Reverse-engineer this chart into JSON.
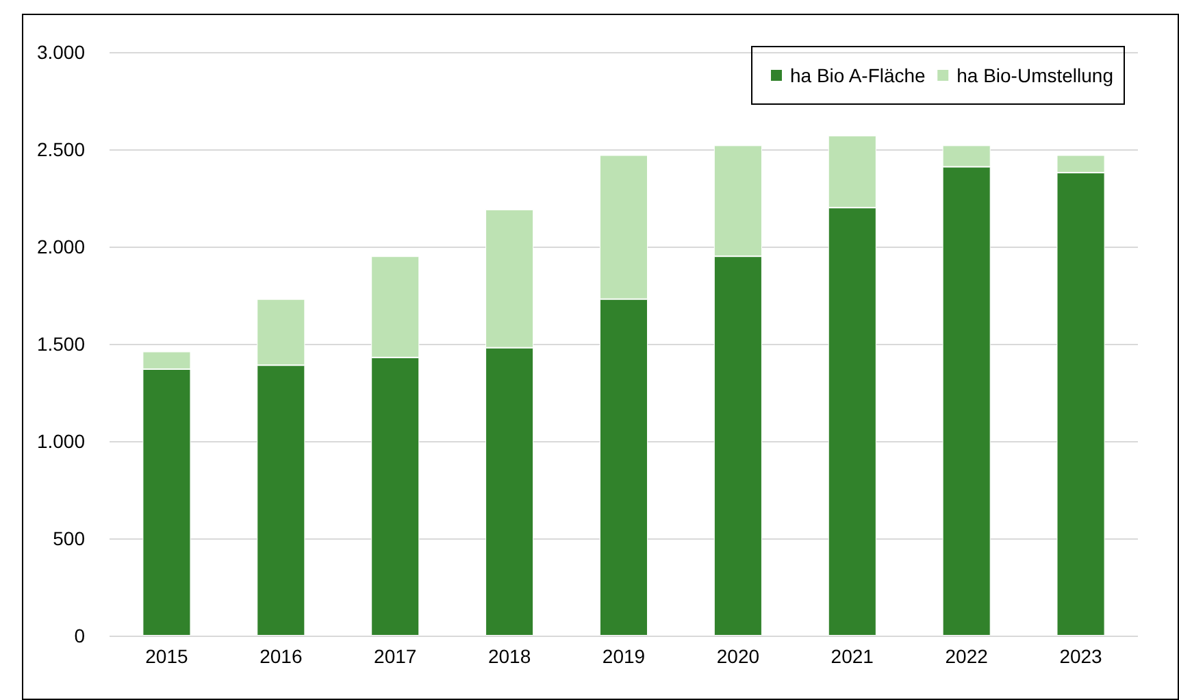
{
  "chart_data": {
    "type": "bar",
    "stacked": true,
    "categories": [
      "2015",
      "2016",
      "2017",
      "2018",
      "2019",
      "2020",
      "2021",
      "2022",
      "2023"
    ],
    "series": [
      {
        "name": "ha Bio A-Fläche",
        "color": "#31822b",
        "values": [
          1370,
          1390,
          1430,
          1480,
          1730,
          1950,
          2200,
          2410,
          2380
        ]
      },
      {
        "name": "ha Bio-Umstellung",
        "color": "#bde2b3",
        "values": [
          90,
          340,
          520,
          710,
          740,
          570,
          370,
          110,
          90
        ]
      }
    ],
    "ylim": [
      0,
      3000
    ],
    "yticks": [
      0,
      500,
      {
        "value": 1000,
        "label": "1.000"
      },
      {
        "value": 1500,
        "label": "1.500"
      },
      {
        "value": 2000,
        "label": "2.000"
      },
      {
        "value": 2500,
        "label": "2.500"
      },
      {
        "value": 3000,
        "label": "3.000"
      }
    ],
    "grid": "y",
    "legend": "top right"
  }
}
